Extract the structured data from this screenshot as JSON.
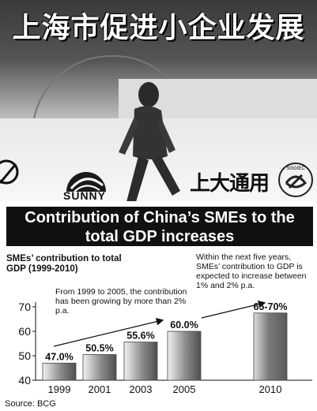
{
  "photo": {
    "headline": "上海市促进小企业发展",
    "logos": {
      "sunny": "SUNNY",
      "shangda": "上大通用",
      "sggiec": "SGGIEC"
    }
  },
  "chart_data": {
    "type": "bar",
    "title": "Contribution of China’s SMEs to the total GDP increases",
    "subtitle": "SMEs’ contribution to total GDP (1999-2010)",
    "categories": [
      "1999",
      "2001",
      "2003",
      "2005",
      "2010"
    ],
    "values": [
      47.0,
      50.5,
      55.6,
      60.0,
      67.5
    ],
    "data_labels": [
      "47.0%",
      "50.5%",
      "55.6%",
      "60.0%",
      "65-70%"
    ],
    "yticks": [
      40,
      50,
      60,
      70
    ],
    "ylim": [
      40,
      70
    ],
    "grid": false,
    "legend": "none",
    "annotations": [
      "From 1999 to 2005, the contribution has been growing by more than 2% p.a.",
      "Within the next five years, SMEs’ contribution to GDP is expected to increase between 1% and 2% p.a."
    ],
    "source": "Source: BCG",
    "colors": {
      "bar_light": "#e8e8e8",
      "bar_dark": "#6a6a6a",
      "title_bg": "#111111"
    }
  }
}
